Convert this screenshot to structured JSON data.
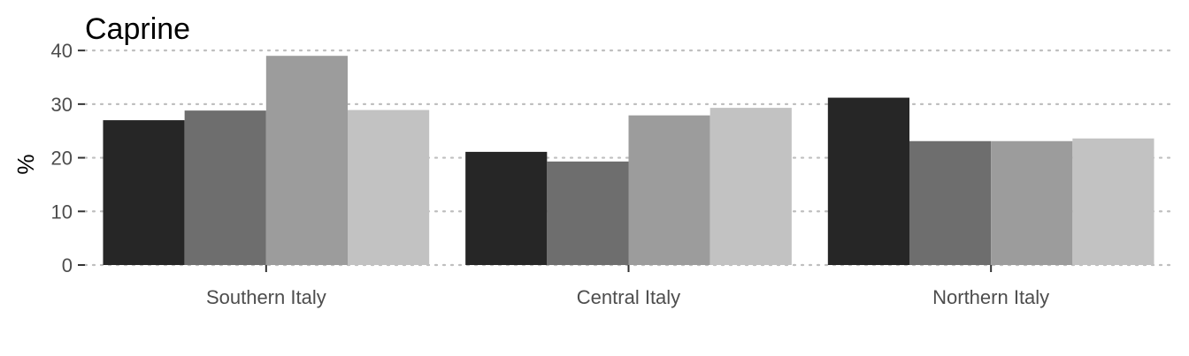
{
  "chart_data": {
    "type": "bar",
    "title": "Caprine",
    "xlabel": "",
    "ylabel": "%",
    "ylim": [
      0,
      42
    ],
    "yticks": [
      0,
      10,
      20,
      30,
      40
    ],
    "categories": [
      "Southern Italy",
      "Central Italy",
      "Northern Italy"
    ],
    "series": [
      {
        "values": [
          27.0,
          21.1,
          31.2
        ],
        "color": "#262626"
      },
      {
        "values": [
          28.8,
          19.3,
          23.1
        ],
        "color": "#6e6e6e"
      },
      {
        "values": [
          39.0,
          27.9,
          23.1
        ],
        "color": "#9c9c9c"
      },
      {
        "values": [
          28.9,
          29.3,
          23.6
        ],
        "color": "#c2c2c2"
      }
    ],
    "grid": "horizontal-dotted",
    "legend": "none"
  }
}
